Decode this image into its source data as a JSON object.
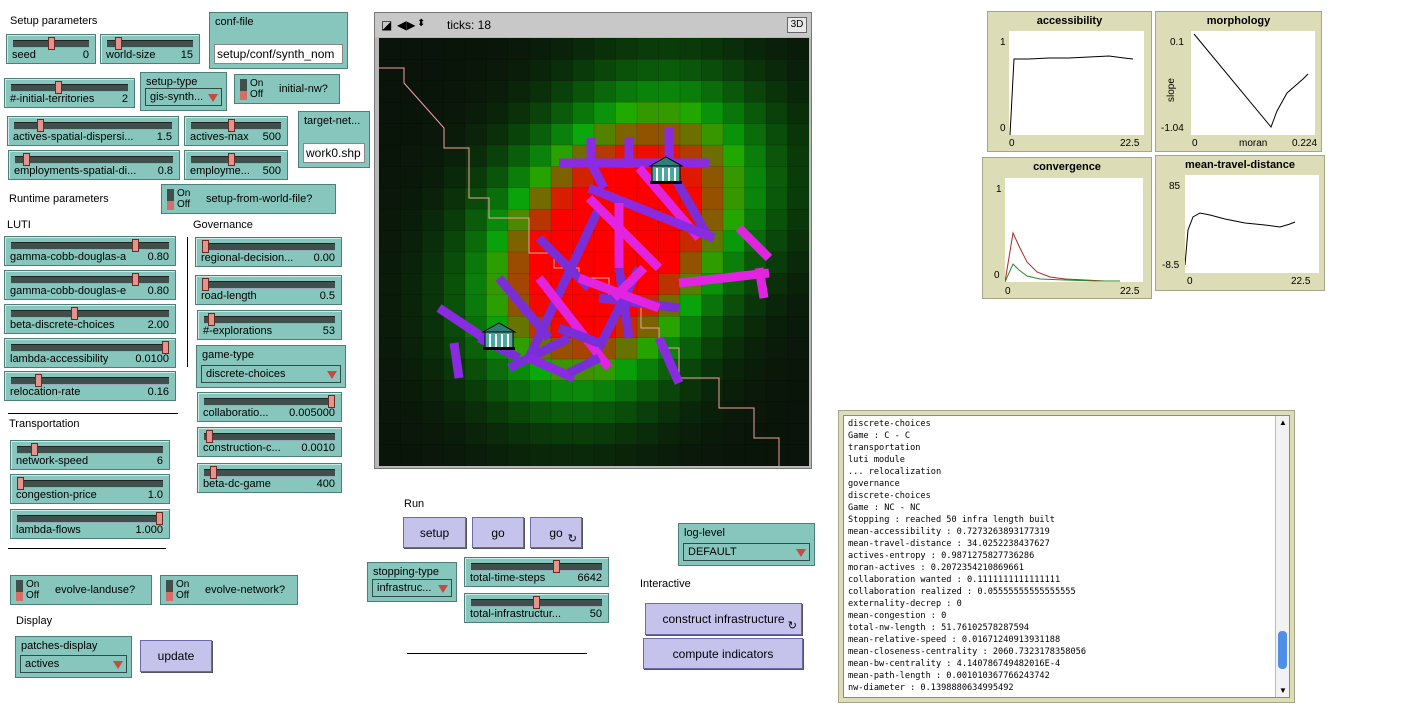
{
  "view": {
    "ticks": "ticks: 18",
    "btn3d": "3D"
  },
  "sections": {
    "setup": "Setup parameters",
    "runtime": "Runtime parameters",
    "luti": "LUTI",
    "governance": "Governance",
    "transportation": "Transportation",
    "display": "Display",
    "run": "Run",
    "interactive": "Interactive"
  },
  "sliders": {
    "seed": {
      "name": "seed",
      "value": "0",
      "frac": 0.5
    },
    "world_size": {
      "name": "world-size",
      "value": "15",
      "frac": 0.1
    },
    "initial_territories": {
      "name": "#-initial-territories",
      "value": "2",
      "frac": 0.4
    },
    "actives_spatial": {
      "name": "actives-spatial-dispersi...",
      "value": "1.5",
      "frac": 0.15
    },
    "actives_max": {
      "name": "actives-max",
      "value": "500",
      "frac": 0.45
    },
    "employments_spatial": {
      "name": "employments-spatial-di...",
      "value": "0.8",
      "frac": 0.05
    },
    "employments_max": {
      "name": "employme...",
      "value": "500",
      "frac": 0.45
    },
    "gamma_a": {
      "name": "gamma-cobb-douglas-a",
      "value": "0.80",
      "frac": 0.8
    },
    "gamma_e": {
      "name": "gamma-cobb-douglas-e",
      "value": "0.80",
      "frac": 0.8
    },
    "beta_dc": {
      "name": "beta-discrete-choices",
      "value": "2.00",
      "frac": 0.4
    },
    "lambda_acc": {
      "name": "lambda-accessibility",
      "value": "0.0100",
      "frac": 1.0
    },
    "relocation": {
      "name": "relocation-rate",
      "value": "0.16",
      "frac": 0.16
    },
    "regional_decision": {
      "name": "regional-decision...",
      "value": "0.00",
      "frac": 0.0
    },
    "road_length": {
      "name": "road-length",
      "value": "0.5",
      "frac": 0.0
    },
    "explorations": {
      "name": "#-explorations",
      "value": "53",
      "frac": 0.03
    },
    "collaboration": {
      "name": "collaboratio...",
      "value": "0.005000",
      "frac": 1.0
    },
    "construction": {
      "name": "construction-c...",
      "value": "0.0010",
      "frac": 0.02
    },
    "beta_dc_game": {
      "name": "beta-dc-game",
      "value": "400",
      "frac": 0.05
    },
    "network_speed": {
      "name": "network-speed",
      "value": "6",
      "frac": 0.1
    },
    "congestion_price": {
      "name": "congestion-price",
      "value": "1.0",
      "frac": 0.0
    },
    "lambda_flows": {
      "name": "lambda-flows",
      "value": "1.000",
      "frac": 1.0
    },
    "total_time_steps": {
      "name": "total-time-steps",
      "value": "6642",
      "frac": 0.66
    },
    "total_infra": {
      "name": "total-infrastructur...",
      "value": "50",
      "frac": 0.5
    }
  },
  "switches": {
    "initial_nw": {
      "on": "On",
      "off": "Off",
      "name": "initial-nw?"
    },
    "setup_from_world": {
      "on": "On",
      "off": "Off",
      "name": "setup-from-world-file?"
    },
    "evolve_landuse": {
      "on": "On",
      "off": "Off",
      "name": "evolve-landuse?"
    },
    "evolve_network": {
      "on": "On",
      "off": "Off",
      "name": "evolve-network?"
    }
  },
  "choosers": {
    "setup_type": {
      "name": "setup-type",
      "value": "gis-synth..."
    },
    "game_type": {
      "name": "game-type",
      "value": "discrete-choices"
    },
    "stopping_type": {
      "name": "stopping-type",
      "value": "infrastruc..."
    },
    "patches_display": {
      "name": "patches-display",
      "value": "actives"
    },
    "log_level": {
      "name": "log-level",
      "value": "DEFAULT"
    }
  },
  "inputs": {
    "conf_file": {
      "name": "conf-file",
      "value": "setup/conf/synth_nom"
    },
    "target_network": {
      "name": "target-net...",
      "value": "work0.shp"
    }
  },
  "buttons": {
    "setup": "setup",
    "go": "go",
    "go_forever": "go",
    "update": "update",
    "construct": "construct infrastructure",
    "compute": "compute indicators"
  },
  "plots": {
    "accessibility": {
      "title": "accessibility",
      "ymax": "1",
      "ymin": "0",
      "xmin": "0",
      "xmax": "22.5"
    },
    "morphology": {
      "title": "morphology",
      "ymax": "0.1",
      "ymin": "-1.04",
      "xmin": "0",
      "xmax": "0.224",
      "xlabel": "moran",
      "ylabel": "slope"
    },
    "convergence": {
      "title": "convergence",
      "ymax": "1",
      "ymin": "0",
      "xmin": "0",
      "xmax": "22.5"
    },
    "mean_travel": {
      "title": "mean-travel-distance",
      "ymax": "85",
      "ymin": "-8.5",
      "xmin": "0",
      "xmax": "22.5"
    }
  },
  "output": "discrete-choices\nGame : C - C\ntransportation\nluti module\n... relocalization\ngovernance\ndiscrete-choices\nGame : NC - NC\nStopping : reached 50 infra length built\nmean-accessibility : 0.7273263893177319\nmean-travel-distance : 34.0252238437627\nactives-entropy : 0.9871275827736286\nmoran-actives : 0.2072354210869661\ncollaboration wanted : 0.1111111111111111\ncollaboration realized : 0.05555555555555555\nexternality-decrep : 0\nmean-congestion : 0\ntotal-nw-length : 51.76102578287594\nmean-relative-speed : 0.01671240913931188\nmean-closeness-centrality : 2060.7323178358056\nmean-bw-centrality : 4.140786749482016E-4\nmean-path-length : 0.001010367766243742\nnw-diameter : 0.1398880634995492"
}
